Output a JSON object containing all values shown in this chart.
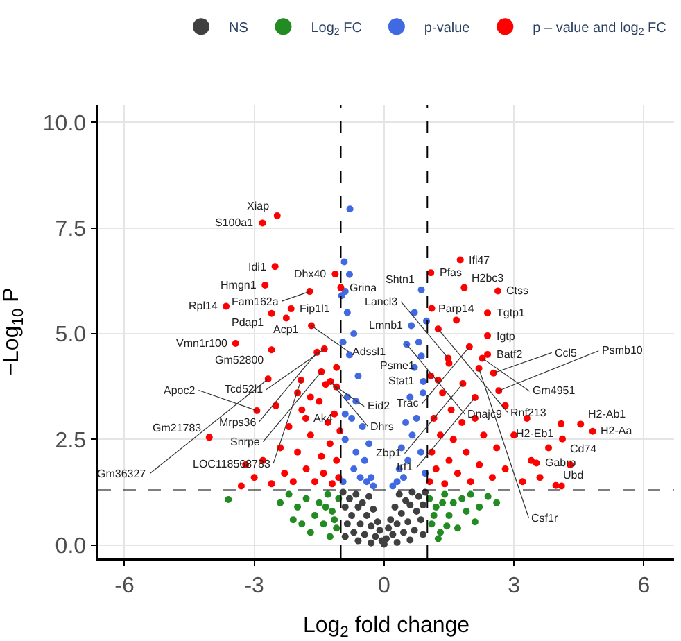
{
  "chart_data": {
    "type": "scatter",
    "xlabel": "Log$_{2}$ fold change",
    "ylabel": "−Log$_{10}$ P",
    "xlim": [
      -6.6,
      6.7
    ],
    "xticks": [
      -6,
      -3,
      0,
      3,
      6
    ],
    "ylim": [
      -0.3,
      10.4
    ],
    "yticks": [
      {
        "value": 0,
        "label": "0.0"
      },
      {
        "value": 2.5,
        "label": "2.5"
      },
      {
        "value": 5,
        "label": "5.0"
      },
      {
        "value": 7.5,
        "label": "7.5"
      },
      {
        "value": 10,
        "label": "10.0"
      }
    ],
    "grid": true,
    "legend": "top",
    "marker": "circle",
    "ref_lines": [
      {
        "axis": "x",
        "value": -1,
        "line_style": "dashed",
        "color": "#000000"
      },
      {
        "axis": "x",
        "value": 1,
        "line_style": "dashed",
        "color": "#000000"
      },
      {
        "axis": "y",
        "value": 1.3,
        "line_style": "dashed",
        "color": "#000000"
      }
    ],
    "series": [
      {
        "name": "NS",
        "color": "#404040",
        "x": [
          -0.95,
          -0.9,
          -0.85,
          -0.8,
          -0.75,
          -0.7,
          -0.65,
          -0.6,
          -0.55,
          -0.5,
          -0.45,
          -0.4,
          -0.35,
          -0.3,
          -0.25,
          -0.2,
          -0.15,
          -0.1,
          -0.05,
          0,
          0.05,
          0.1,
          0.15,
          0.2,
          0.25,
          0.3,
          0.35,
          0.4,
          0.45,
          0.5,
          0.55,
          0.6,
          0.65,
          0.7,
          0.75,
          0.8,
          0.85,
          0.9,
          0.95,
          -0.6,
          0.6,
          -0.3,
          0.3,
          -0.9,
          0.9
        ],
        "values": [
          1.25,
          0.9,
          0.5,
          1.1,
          0.7,
          0.3,
          1.2,
          0.9,
          0.5,
          1.0,
          0.25,
          0.7,
          1.15,
          0.45,
          0.85,
          0.2,
          0.55,
          0.35,
          0.1,
          0.02,
          0.15,
          0.4,
          0.6,
          0.25,
          0.9,
          0.5,
          1.2,
          0.75,
          0.3,
          1.05,
          0.55,
          0.95,
          1.25,
          0.35,
          0.8,
          1.15,
          0.6,
          0.95,
          1.25,
          0.1,
          0.12,
          0.05,
          0.06,
          0.2,
          0.25
        ]
      },
      {
        "name": "Log$_{2}$ FC",
        "color": "#228b22",
        "x": [
          -3.6,
          -2.2,
          -2.0,
          -1.8,
          -1.6,
          -1.5,
          -1.4,
          -1.3,
          -1.2,
          -1.1,
          -1.05,
          -2.4,
          -1.9,
          -1.7,
          -1.25,
          -2.1,
          -1.35,
          -1.15,
          1.05,
          1.1,
          1.2,
          1.3,
          1.4,
          1.5,
          1.6,
          1.7,
          1.8,
          1.9,
          2.0,
          2.2,
          2.4,
          2.6,
          1.25,
          1.15,
          1.45,
          2.1,
          1.35
        ],
        "values": [
          1.08,
          1.2,
          0.9,
          1.1,
          0.7,
          1.0,
          0.5,
          1.2,
          0.8,
          0.4,
          1.1,
          1.0,
          0.5,
          0.3,
          0.2,
          0.6,
          0.9,
          0.6,
          1.1,
          0.5,
          0.9,
          0.3,
          1.2,
          0.7,
          1.0,
          0.4,
          1.1,
          0.8,
          1.2,
          0.9,
          1.15,
          1.0,
          0.15,
          0.7,
          0.45,
          0.55,
          1.0
        ]
      },
      {
        "name": "p-value",
        "color": "#4169e1",
        "x": [
          -0.95,
          -0.9,
          -0.85,
          -0.8,
          -0.79,
          -0.8,
          -0.85,
          -0.9,
          -0.7,
          -0.75,
          -0.65,
          -0.6,
          -0.55,
          -0.5,
          -0.45,
          -0.4,
          -0.35,
          -0.3,
          -0.25,
          -0.95,
          -0.9,
          -0.7,
          -0.65,
          -0.98,
          -0.92,
          0.3,
          0.35,
          0.4,
          0.45,
          0.5,
          0.55,
          0.6,
          0.65,
          0.7,
          0.75,
          0.8,
          0.85,
          0.9,
          0.95,
          0.86,
          0.63,
          0.52,
          0.86,
          0.91,
          0.98,
          0.2,
          0.7
        ],
        "values": [
          1.5,
          2.5,
          3.5,
          4.5,
          7.95,
          6.4,
          5.5,
          6.0,
          1.8,
          3.0,
          2.2,
          4.0,
          1.6,
          2.8,
          2.0,
          1.5,
          2.4,
          1.6,
          1.4,
          4.8,
          3.1,
          5.0,
          3.4,
          5.9,
          6.7,
          1.5,
          1.8,
          2.3,
          1.6,
          2.9,
          2.0,
          3.5,
          2.6,
          4.2,
          3.0,
          4.8,
          2.2,
          3.6,
          1.7,
          6.04,
          5.19,
          4.75,
          4.47,
          3.87,
          5.3,
          1.4,
          5.5
        ]
      },
      {
        "name": "p – value and log$_{2}$ FC",
        "color": "#ff0000",
        "x": [
          -2.47,
          -2.81,
          -2.52,
          -2.75,
          -1.72,
          -1.13,
          -1.0,
          -3.65,
          -2.6,
          -2.15,
          -2.26,
          -2.6,
          -1.68,
          -3.43,
          -1.55,
          -1.38,
          -1.45,
          -1.92,
          -2.68,
          -1.24,
          -1.1,
          -2.94,
          -1.81,
          -4.04,
          -3.2,
          -3.0,
          -2.8,
          -2.6,
          -2.4,
          -2.3,
          -2.2,
          -2.1,
          -2.0,
          -1.9,
          -1.8,
          -1.7,
          -1.6,
          -1.5,
          -1.45,
          -1.4,
          -1.3,
          -1.25,
          -1.2,
          -1.15,
          -1.1,
          -1.05,
          -1.02,
          -2.5,
          -2.0,
          -1.7,
          -3.3,
          -1.35,
          -1.1,
          1.76,
          1.08,
          1.85,
          2.63,
          2.39,
          1.67,
          2.39,
          1.97,
          1.25,
          2.27,
          2.39,
          1.48,
          2.19,
          2.53,
          1.82,
          2.65,
          2.1,
          4.09,
          4.54,
          4.82,
          4.12,
          3.52,
          3.97,
          1.05,
          1.1,
          1.15,
          1.2,
          1.3,
          1.35,
          1.4,
          1.5,
          1.55,
          1.6,
          1.7,
          1.8,
          1.9,
          2.0,
          2.1,
          2.2,
          2.3,
          2.5,
          2.6,
          2.8,
          3.0,
          3.2,
          3.4,
          3.6,
          3.8,
          4.1,
          4.3,
          1.08,
          1.25,
          2.8,
          3.3,
          1.5,
          1.1
        ],
        "values": [
          7.79,
          7.62,
          6.59,
          6.15,
          6.0,
          6.41,
          6.09,
          5.65,
          5.48,
          5.59,
          5.37,
          4.62,
          5.19,
          4.77,
          4.56,
          4.64,
          4.1,
          3.9,
          3.93,
          3.87,
          3.74,
          3.18,
          3.0,
          2.55,
          1.9,
          1.6,
          2.0,
          1.45,
          2.3,
          1.7,
          2.8,
          1.5,
          2.2,
          3.2,
          1.8,
          2.6,
          1.5,
          3.4,
          2.1,
          1.7,
          2.9,
          2.4,
          1.45,
          3.1,
          2.0,
          1.6,
          2.7,
          3.3,
          3.6,
          3.5,
          1.4,
          3.8,
          4.2,
          6.75,
          6.44,
          6.09,
          6.01,
          5.49,
          5.32,
          4.95,
          4.69,
          5.11,
          4.42,
          4.51,
          4.42,
          4.18,
          4.07,
          3.82,
          3.65,
          3.49,
          2.87,
          2.86,
          2.69,
          2.51,
          1.94,
          1.41,
          1.5,
          2.2,
          3.0,
          1.8,
          2.6,
          3.6,
          1.45,
          2.0,
          3.2,
          2.5,
          1.7,
          2.9,
          2.2,
          1.5,
          3.0,
          1.9,
          2.6,
          1.6,
          2.3,
          1.8,
          2.6,
          1.5,
          2.0,
          1.6,
          2.3,
          1.4,
          1.9,
          4.0,
          3.9,
          3.3,
          3.0,
          4.3,
          5.6
        ]
      }
    ],
    "annotations": [
      {
        "text": "Xiap",
        "x": -2.47,
        "y": 7.79
      },
      {
        "text": "S100a1",
        "x": -2.81,
        "y": 7.62
      },
      {
        "text": "Idi1",
        "x": -2.52,
        "y": 6.59
      },
      {
        "text": "Hmgn1",
        "x": -2.75,
        "y": 6.15
      },
      {
        "text": "Fam162a",
        "x": -1.72,
        "y": 6.0
      },
      {
        "text": "Dhx40",
        "x": -1.13,
        "y": 6.41
      },
      {
        "text": "Grina",
        "x": -1.0,
        "y": 6.09
      },
      {
        "text": "Rpl14",
        "x": -3.65,
        "y": 5.65
      },
      {
        "text": "Pdap1",
        "x": -2.6,
        "y": 5.48
      },
      {
        "text": "Fip1l1",
        "x": -2.15,
        "y": 5.59
      },
      {
        "text": "Acp1",
        "x": -2.26,
        "y": 5.37
      },
      {
        "text": "Gm52800",
        "x": -2.6,
        "y": 4.62
      },
      {
        "text": "Adssl1",
        "x": -1.68,
        "y": 5.19
      },
      {
        "text": "Vmn1r100",
        "x": -3.43,
        "y": 4.77
      },
      {
        "text": "Mrps36",
        "x": -1.55,
        "y": 4.56
      },
      {
        "text": "Tcd52l1",
        "x": -1.38,
        "y": 4.64
      },
      {
        "text": "Snrpe",
        "x": -1.45,
        "y": 4.1
      },
      {
        "text": "LOC118568783",
        "x": -1.92,
        "y": 3.9
      },
      {
        "text": "Gm36327",
        "x": -2.68,
        "y": 3.93
      },
      {
        "text": "Dhrs",
        "x": -1.24,
        "y": 3.87
      },
      {
        "text": "Eid2",
        "x": -1.1,
        "y": 3.74
      },
      {
        "text": "Apoc2",
        "x": -2.94,
        "y": 3.18
      },
      {
        "text": "Ak4",
        "x": -1.81,
        "y": 3.0
      },
      {
        "text": "Gm21783",
        "x": -4.04,
        "y": 2.55
      },
      {
        "text": "Ifi47",
        "x": 1.76,
        "y": 6.75
      },
      {
        "text": "Pfas",
        "x": 1.08,
        "y": 6.44
      },
      {
        "text": "H2bc3",
        "x": 1.85,
        "y": 6.09
      },
      {
        "text": "Ctss",
        "x": 2.63,
        "y": 6.01
      },
      {
        "text": "Shtn1",
        "x": 0.86,
        "y": 6.04
      },
      {
        "text": "Tgtp1",
        "x": 2.39,
        "y": 5.49
      },
      {
        "text": "Parp14",
        "x": 1.67,
        "y": 5.32
      },
      {
        "text": "Lmnb1",
        "x": 0.63,
        "y": 5.19
      },
      {
        "text": "Igtp",
        "x": 2.39,
        "y": 4.95
      },
      {
        "text": "Rnf213",
        "x": 1.25,
        "y": 5.11
      },
      {
        "text": "Trac",
        "x": 1.97,
        "y": 4.69
      },
      {
        "text": "Dnajc9",
        "x": 0.52,
        "y": 4.75
      },
      {
        "text": "Gm4951",
        "x": 2.27,
        "y": 4.42
      },
      {
        "text": "Batf2",
        "x": 2.39,
        "y": 4.51
      },
      {
        "text": "Psme1",
        "x": 0.86,
        "y": 4.47
      },
      {
        "text": "Lancl3",
        "x": 1.48,
        "y": 4.42
      },
      {
        "text": "Csf1r",
        "x": 2.19,
        "y": 4.18
      },
      {
        "text": "Stat1",
        "x": 0.91,
        "y": 3.87
      },
      {
        "text": "Ccl5",
        "x": 2.53,
        "y": 4.07
      },
      {
        "text": "Zbp1",
        "x": 1.82,
        "y": 3.82
      },
      {
        "text": "Psmb10",
        "x": 2.65,
        "y": 3.65
      },
      {
        "text": "Irf1",
        "x": 2.1,
        "y": 3.49
      },
      {
        "text": "H2-Eb1",
        "x": 4.09,
        "y": 2.87
      },
      {
        "text": "H2-Ab1",
        "x": 4.54,
        "y": 2.86
      },
      {
        "text": "H2-Aa",
        "x": 4.82,
        "y": 2.69
      },
      {
        "text": "Cd74",
        "x": 4.12,
        "y": 2.51
      },
      {
        "text": "Gabrp",
        "x": 3.52,
        "y": 1.94
      },
      {
        "text": "Ubd",
        "x": 3.97,
        "y": 1.41
      }
    ]
  }
}
